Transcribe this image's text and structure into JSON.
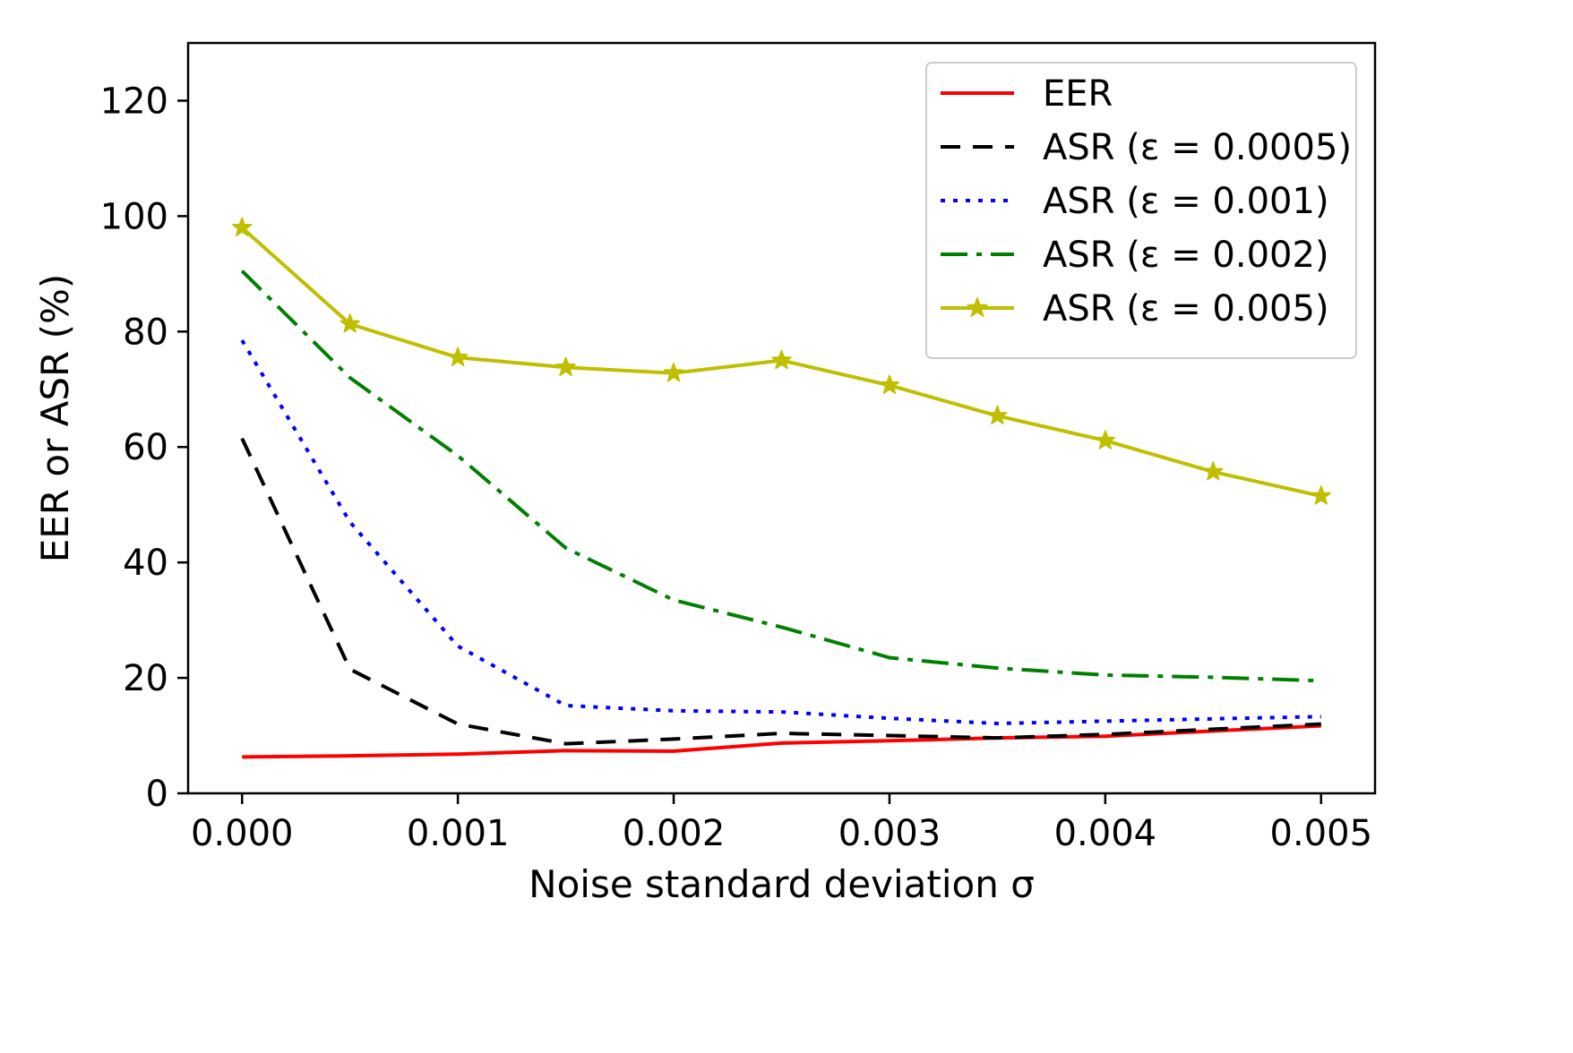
{
  "chart_data": {
    "type": "line",
    "xlabel": "Noise standard deviation σ",
    "ylabel": "EER or ASR (%)",
    "xlim": [
      -0.00025,
      0.00525
    ],
    "ylim": [
      0,
      130
    ],
    "xticks": [
      0.0,
      0.001,
      0.002,
      0.003,
      0.004,
      0.005
    ],
    "xtick_labels": [
      "0.000",
      "0.001",
      "0.002",
      "0.003",
      "0.004",
      "0.005"
    ],
    "yticks": [
      0,
      20,
      40,
      60,
      80,
      100,
      120
    ],
    "ytick_labels": [
      "0",
      "20",
      "40",
      "60",
      "80",
      "100",
      "120"
    ],
    "grid": false,
    "legend_position": "top-right",
    "x": [
      0.0,
      0.0005,
      0.001,
      0.0015,
      0.002,
      0.0025,
      0.003,
      0.0035,
      0.004,
      0.0045,
      0.005
    ],
    "series": [
      {
        "name": "EER",
        "color": "#ff0000",
        "dash": "",
        "marker": "none",
        "values": [
          6.3,
          6.5,
          6.8,
          7.4,
          7.3,
          8.7,
          9.1,
          9.6,
          9.9,
          10.8,
          11.7
        ]
      },
      {
        "name": "ASR (ε = 0.0005)",
        "color": "#000000",
        "dash": "22,14",
        "marker": "none",
        "values": [
          61.5,
          21.5,
          12.0,
          8.6,
          9.4,
          10.4,
          10.0,
          9.6,
          10.2,
          11.1,
          12.0
        ]
      },
      {
        "name": "ASR (ε = 0.001)",
        "color": "#0000ff",
        "dash": "5,9",
        "marker": "none",
        "values": [
          78.5,
          47.0,
          25.5,
          15.2,
          14.3,
          14.1,
          13.0,
          12.1,
          12.5,
          12.9,
          13.3
        ]
      },
      {
        "name": "ASR (ε = 0.002)",
        "color": "#008000",
        "dash": "30,10,6,10",
        "marker": "none",
        "values": [
          90.5,
          72.0,
          58.5,
          42.5,
          33.5,
          28.8,
          23.5,
          21.7,
          20.5,
          20.1,
          19.5
        ]
      },
      {
        "name": "ASR (ε = 0.005)",
        "color": "#bfbf00",
        "dash": "",
        "marker": "star",
        "values": [
          98.0,
          81.3,
          75.5,
          73.8,
          72.8,
          75.0,
          70.7,
          65.4,
          61.1,
          55.7,
          51.5
        ]
      }
    ]
  }
}
